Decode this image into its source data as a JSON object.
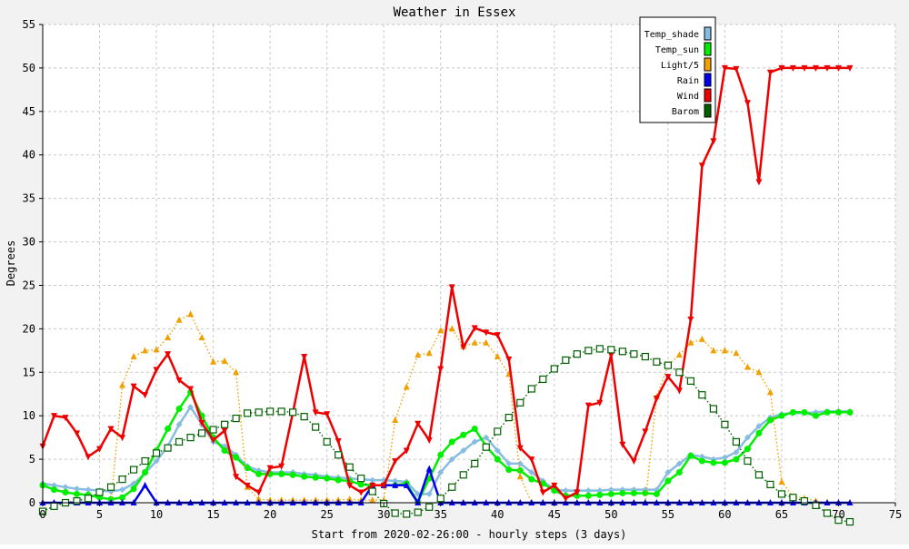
{
  "chart_data": {
    "type": "line",
    "title": "Weather in Essex",
    "xlabel": "Start from 2020-02-26:00 - hourly steps (3 days)",
    "ylabel": "Degrees",
    "xlim": [
      0,
      75
    ],
    "ylim": [
      0,
      55
    ],
    "x_ticks": [
      0,
      5,
      10,
      15,
      20,
      25,
      30,
      35,
      40,
      45,
      50,
      55,
      60,
      65,
      70,
      75
    ],
    "y_ticks": [
      0,
      5,
      10,
      15,
      20,
      25,
      30,
      35,
      40,
      45,
      50,
      55
    ],
    "grid": true,
    "legend_position": "top-right",
    "series": [
      {
        "name": "Temp_shade",
        "color": "#87bde0",
        "marker": "diamond",
        "line": "solid",
        "values": [
          2.2,
          2.0,
          1.8,
          1.6,
          1.5,
          1.4,
          1.3,
          1.5,
          2.2,
          3.4,
          4.8,
          6.5,
          9.0,
          11.0,
          9.0,
          7.0,
          6.5,
          5.5,
          4.2,
          3.7,
          3.5,
          3.5,
          3.5,
          3.3,
          3.2,
          3.0,
          2.9,
          2.8,
          2.7,
          2.6,
          2.6,
          2.5,
          2.4,
          1.0,
          1.0,
          3.5,
          5.0,
          6.0,
          7.0,
          7.5,
          6.0,
          4.5,
          4.5,
          3.5,
          2.5,
          1.5,
          1.4,
          1.4,
          1.4,
          1.4,
          1.5,
          1.5,
          1.5,
          1.5,
          1.5,
          3.5,
          4.5,
          5.5,
          5.3,
          5.0,
          5.2,
          5.8,
          7.5,
          8.8,
          9.8,
          10.2,
          10.3,
          10.3,
          10.4,
          10.5,
          10.5,
          10.5
        ]
      },
      {
        "name": "Temp_sun",
        "color": "#00ee00",
        "marker": "circle",
        "line": "solid",
        "values": [
          2.0,
          1.5,
          1.2,
          1.0,
          0.9,
          0.6,
          0.4,
          0.6,
          1.6,
          3.5,
          6.0,
          8.5,
          10.8,
          12.7,
          10.0,
          7.5,
          6.0,
          5.2,
          4.0,
          3.3,
          3.3,
          3.3,
          3.2,
          3.0,
          2.9,
          2.8,
          2.6,
          2.5,
          2.1,
          2.0,
          2.0,
          2.0,
          2.2,
          0.1,
          2.8,
          5.5,
          7.0,
          7.8,
          8.5,
          6.5,
          5.0,
          3.8,
          3.7,
          2.7,
          2.2,
          1.4,
          0.8,
          0.8,
          0.8,
          0.9,
          1.0,
          1.1,
          1.1,
          1.1,
          1.0,
          2.5,
          3.5,
          5.4,
          4.8,
          4.6,
          4.6,
          5.0,
          6.2,
          8.0,
          9.5,
          10.0,
          10.4,
          10.4,
          10.0,
          10.4,
          10.4,
          10.4
        ]
      },
      {
        "name": "Light/5",
        "color": "#f0a000",
        "marker": "triangle-up",
        "line": "dotted",
        "values": [
          0,
          0,
          0,
          0,
          0,
          0,
          0,
          13.5,
          16.8,
          17.5,
          17.6,
          19.0,
          21.0,
          21.7,
          19.0,
          16.2,
          16.3,
          15.0,
          1.8,
          0.4,
          0.3,
          0.3,
          0.3,
          0.3,
          0.3,
          0.3,
          0.3,
          0.4,
          0.3,
          0.3,
          0.3,
          9.5,
          13.3,
          17.0,
          17.2,
          19.8,
          20.0,
          18.0,
          18.4,
          18.4,
          16.8,
          14.8,
          3.0,
          0,
          0,
          0,
          0,
          0,
          0,
          0,
          0,
          0,
          0,
          0,
          12.2,
          15.8,
          17.0,
          18.4,
          18.8,
          17.5,
          17.5,
          17.2,
          15.6,
          15.0,
          12.7,
          2.4,
          0.7,
          0.5,
          0.2,
          0,
          0,
          0
        ]
      },
      {
        "name": "Rain",
        "color": "#0000ee",
        "marker": "triangle-up",
        "line": "solid",
        "values": [
          0,
          0,
          0,
          0,
          0,
          0,
          0,
          0,
          0,
          2.0,
          0,
          0,
          0,
          0,
          0,
          0,
          0,
          0,
          0,
          0,
          0,
          0,
          0,
          0,
          0,
          0,
          0,
          0,
          0,
          2.0,
          2.0,
          2.0,
          2.0,
          0,
          3.9,
          0,
          0,
          0,
          0,
          0,
          0,
          0,
          0,
          0,
          0,
          0,
          0,
          0,
          0,
          0,
          0,
          0,
          0,
          0,
          0,
          0,
          0,
          0,
          0,
          0,
          0,
          0,
          0,
          0,
          0,
          0,
          0,
          0,
          0,
          0,
          0,
          0
        ]
      },
      {
        "name": "Wind",
        "color": "#ee0000",
        "marker": "triangle-down",
        "line": "solid",
        "values": [
          6.5,
          10.0,
          9.8,
          8.0,
          5.3,
          6.2,
          8.5,
          7.5,
          13.4,
          12.4,
          15.3,
          17.1,
          14.1,
          13.1,
          9.2,
          7.2,
          8.3,
          3.0,
          2.0,
          1.2,
          4.0,
          4.2,
          10.3,
          16.8,
          10.4,
          10.2,
          7.1,
          2.0,
          1.2,
          2.0,
          2.0,
          4.8,
          6.0,
          9.1,
          7.2,
          15.4,
          24.8,
          17.9,
          20.1,
          19.6,
          19.3,
          16.5,
          6.3,
          5.0,
          1.2,
          2.0,
          0.5,
          1.2,
          11.2,
          11.5,
          17.0,
          6.7,
          4.8,
          8.2,
          12.0,
          14.5,
          12.9,
          21.1,
          38.8,
          41.6,
          50.0,
          49.9,
          46.0,
          36.9,
          49.5,
          50.0,
          50.0,
          50.0,
          50.0,
          50.0,
          50.0,
          50.0
        ]
      },
      {
        "name": "Barom",
        "color": "#006000",
        "marker": "square",
        "line": "dotted",
        "values": [
          -1.0,
          -0.4,
          0,
          0.2,
          0.5,
          1.2,
          1.8,
          2.7,
          3.8,
          4.8,
          5.7,
          6.3,
          7.0,
          7.5,
          8.0,
          8.4,
          9.0,
          9.7,
          10.3,
          10.4,
          10.5,
          10.5,
          10.4,
          9.9,
          8.7,
          7.0,
          5.5,
          4.1,
          2.8,
          1.3,
          -0.1,
          -1.2,
          -1.3,
          -1.1,
          -0.5,
          0.5,
          1.8,
          3.2,
          4.5,
          6.4,
          8.2,
          9.8,
          11.5,
          13.1,
          14.2,
          15.4,
          16.4,
          17.1,
          17.5,
          17.7,
          17.6,
          17.4,
          17.1,
          16.8,
          16.2,
          15.8,
          15.0,
          14.0,
          12.4,
          10.8,
          9.0,
          7.0,
          4.8,
          3.2,
          2.1,
          1.0,
          0.6,
          0.2,
          -0.3,
          -1.2,
          -2.0,
          -2.2
        ]
      }
    ]
  }
}
